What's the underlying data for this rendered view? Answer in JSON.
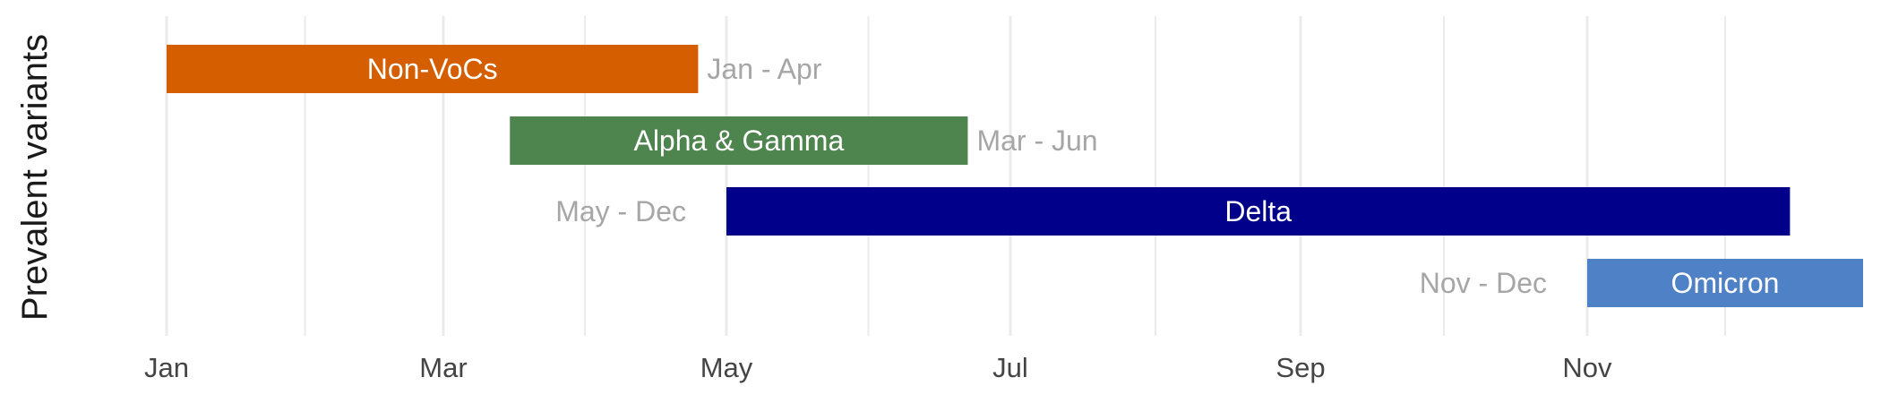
{
  "chart_data": {
    "type": "bar",
    "orientation": "horizontal",
    "ylabel": "Prevalent variants",
    "xlabel": "",
    "x_axis": {
      "unit": "month",
      "ticks": [
        "Jan",
        "Mar",
        "May",
        "Jul",
        "Sep",
        "Nov"
      ],
      "range": [
        "Jan",
        "Dec"
      ]
    },
    "grid": true,
    "series": [
      {
        "name": "Non-VoCs",
        "start_month": 1.0,
        "end_month": 4.8,
        "range_label": "Jan - Apr",
        "label_side": "right",
        "color": "#d55e00"
      },
      {
        "name": "Alpha & Gamma",
        "start_month": 3.47,
        "end_month": 6.7,
        "range_label": "Mar - Jun",
        "label_side": "right",
        "color": "#4e844e"
      },
      {
        "name": "Delta",
        "start_month": 5.0,
        "end_month": 12.47,
        "range_label": "May - Dec",
        "label_side": "left",
        "color": "#00008b"
      },
      {
        "name": "Omicron",
        "start_month": 11.0,
        "end_month": 13.0,
        "range_label": "Nov - Dec",
        "label_side": "left",
        "color": "#4f81c7"
      }
    ]
  }
}
